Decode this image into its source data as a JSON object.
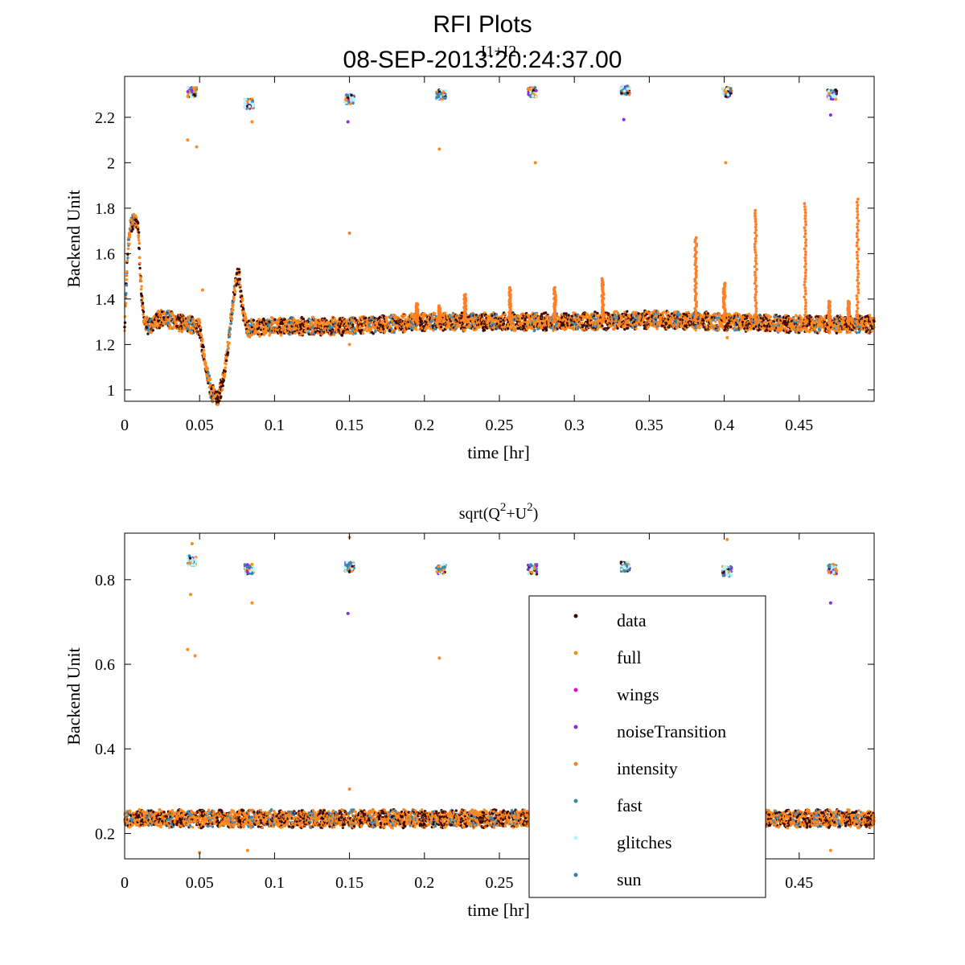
{
  "figure": {
    "title": "RFI Plots",
    "date": "08-SEP-2013:20:24:37.00"
  },
  "colors": {
    "data": "#3a0a0a",
    "full": "#ff8c1a",
    "wings": "#e600e6",
    "noiseTransition": "#8a2be2",
    "intensity": "#ff7f27",
    "fast": "#3a87b5",
    "glitches": "#b5f5ff",
    "sun": "#2f7fae"
  },
  "chart_data": [
    {
      "type": "scatter",
      "title": "I1+I2",
      "xlabel": "time [hr]",
      "ylabel": "Backend Unit",
      "xlim": [
        0,
        0.5
      ],
      "ylim": [
        0.95,
        2.38
      ],
      "xticks": [
        "0",
        "0.05",
        "0.1",
        "0.15",
        "0.2",
        "0.25",
        "0.3",
        "0.35",
        "0.4",
        "0.45"
      ],
      "xtick_values": [
        0,
        0.05,
        0.1,
        0.15,
        0.2,
        0.25,
        0.3,
        0.35,
        0.4,
        0.45
      ],
      "yticks": [
        "1",
        "1.2",
        "1.4",
        "1.6",
        "1.8",
        "2",
        "2.2"
      ],
      "ytick_values": [
        1.0,
        1.2,
        1.4,
        1.6,
        1.8,
        2.0,
        2.2
      ],
      "baseline": 1.29,
      "baseline_curve": [
        [
          0,
          1.27
        ],
        [
          0.002,
          1.6
        ],
        [
          0.004,
          1.73
        ],
        [
          0.007,
          1.75
        ],
        [
          0.009,
          1.72
        ],
        [
          0.011,
          1.45
        ],
        [
          0.013,
          1.3
        ],
        [
          0.016,
          1.28
        ],
        [
          0.025,
          1.32
        ],
        [
          0.04,
          1.29
        ],
        [
          0.05,
          1.28
        ],
        [
          0.054,
          1.1
        ],
        [
          0.058,
          0.99
        ],
        [
          0.062,
          0.96
        ],
        [
          0.066,
          1.05
        ],
        [
          0.07,
          1.25
        ],
        [
          0.074,
          1.47
        ],
        [
          0.076,
          1.52
        ],
        [
          0.079,
          1.34
        ],
        [
          0.082,
          1.27
        ],
        [
          0.1,
          1.28
        ],
        [
          0.15,
          1.28
        ],
        [
          0.2,
          1.3
        ],
        [
          0.25,
          1.3
        ],
        [
          0.3,
          1.3
        ],
        [
          0.35,
          1.31
        ],
        [
          0.4,
          1.3
        ],
        [
          0.45,
          1.29
        ],
        [
          0.5,
          1.29
        ]
      ],
      "spikes": [
        {
          "t": 0.195,
          "peak": 1.38
        },
        {
          "t": 0.21,
          "peak": 1.37
        },
        {
          "t": 0.227,
          "peak": 1.42
        },
        {
          "t": 0.257,
          "peak": 1.45
        },
        {
          "t": 0.287,
          "peak": 1.45
        },
        {
          "t": 0.319,
          "peak": 1.49
        },
        {
          "t": 0.381,
          "peak": 1.67
        },
        {
          "t": 0.4,
          "peak": 1.47
        },
        {
          "t": 0.421,
          "peak": 1.79
        },
        {
          "t": 0.454,
          "peak": 1.82
        },
        {
          "t": 0.47,
          "peak": 1.39
        },
        {
          "t": 0.483,
          "peak": 1.39
        },
        {
          "t": 0.489,
          "peak": 1.84
        }
      ],
      "noise_clusters": [
        {
          "t": 0.045,
          "center": 2.31
        },
        {
          "t": 0.083,
          "center": 2.26
        },
        {
          "t": 0.15,
          "center": 2.28
        },
        {
          "t": 0.211,
          "center": 2.3
        },
        {
          "t": 0.272,
          "center": 2.31
        },
        {
          "t": 0.334,
          "center": 2.32
        },
        {
          "t": 0.402,
          "center": 2.31
        },
        {
          "t": 0.472,
          "center": 2.3
        }
      ],
      "outliers": [
        {
          "t": 0.042,
          "y": 2.1,
          "series": "full"
        },
        {
          "t": 0.048,
          "y": 2.07,
          "series": "full"
        },
        {
          "t": 0.085,
          "y": 2.18,
          "series": "full"
        },
        {
          "t": 0.149,
          "y": 2.18,
          "series": "noiseTransition"
        },
        {
          "t": 0.15,
          "y": 1.69,
          "series": "intensity"
        },
        {
          "t": 0.21,
          "y": 2.06,
          "series": "full"
        },
        {
          "t": 0.274,
          "y": 2.0,
          "series": "full"
        },
        {
          "t": 0.333,
          "y": 2.19,
          "series": "noiseTransition"
        },
        {
          "t": 0.401,
          "y": 2.0,
          "series": "full"
        },
        {
          "t": 0.471,
          "y": 2.21,
          "series": "noiseTransition"
        },
        {
          "t": 0.052,
          "y": 1.44,
          "series": "full"
        },
        {
          "t": 0.15,
          "y": 1.2,
          "series": "full"
        },
        {
          "t": 0.402,
          "y": 1.23,
          "series": "full"
        }
      ]
    },
    {
      "type": "scatter",
      "title_parts": [
        "sqrt(Q",
        "2",
        "+U",
        "2",
        ")"
      ],
      "xlabel": "time [hr]",
      "ylabel": "Backend Unit",
      "xlim": [
        0,
        0.5
      ],
      "ylim": [
        0.14,
        0.91
      ],
      "xticks": [
        "0",
        "0.05",
        "0.1",
        "0.15",
        "0.2",
        "0.25",
        "0.3",
        "0.35",
        "0.4",
        "0.45"
      ],
      "xtick_values": [
        0,
        0.05,
        0.1,
        0.15,
        0.2,
        0.25,
        0.3,
        0.35,
        0.4,
        0.45
      ],
      "yticks": [
        "0.2",
        "0.4",
        "0.6",
        "0.8"
      ],
      "ytick_values": [
        0.2,
        0.4,
        0.6,
        0.8
      ],
      "baseline": 0.235,
      "noise_clusters": [
        {
          "t": 0.045,
          "center": 0.845
        },
        {
          "t": 0.083,
          "center": 0.825
        },
        {
          "t": 0.15,
          "center": 0.83
        },
        {
          "t": 0.211,
          "center": 0.825
        },
        {
          "t": 0.272,
          "center": 0.825
        },
        {
          "t": 0.334,
          "center": 0.83
        },
        {
          "t": 0.402,
          "center": 0.82
        },
        {
          "t": 0.472,
          "center": 0.825
        }
      ],
      "outliers": [
        {
          "t": 0.042,
          "y": 0.635,
          "series": "full"
        },
        {
          "t": 0.047,
          "y": 0.62,
          "series": "full"
        },
        {
          "t": 0.044,
          "y": 0.765,
          "series": "full"
        },
        {
          "t": 0.085,
          "y": 0.745,
          "series": "full"
        },
        {
          "t": 0.149,
          "y": 0.72,
          "series": "noiseTransition"
        },
        {
          "t": 0.15,
          "y": 0.305,
          "series": "intensity"
        },
        {
          "t": 0.15,
          "y": 0.9,
          "series": "full"
        },
        {
          "t": 0.21,
          "y": 0.615,
          "series": "full"
        },
        {
          "t": 0.402,
          "y": 0.895,
          "series": "full"
        },
        {
          "t": 0.471,
          "y": 0.745,
          "series": "noiseTransition"
        },
        {
          "t": 0.045,
          "y": 0.885,
          "series": "full"
        },
        {
          "t": 0.05,
          "y": 0.155,
          "series": "full"
        },
        {
          "t": 0.082,
          "y": 0.16,
          "series": "full"
        },
        {
          "t": 0.471,
          "y": 0.16,
          "series": "full"
        }
      ],
      "legend": {
        "placement": "lower-right",
        "entries": [
          "data",
          "full",
          "wings",
          "noiseTransition",
          "intensity",
          "fast",
          "glitches",
          "sun"
        ]
      }
    }
  ]
}
